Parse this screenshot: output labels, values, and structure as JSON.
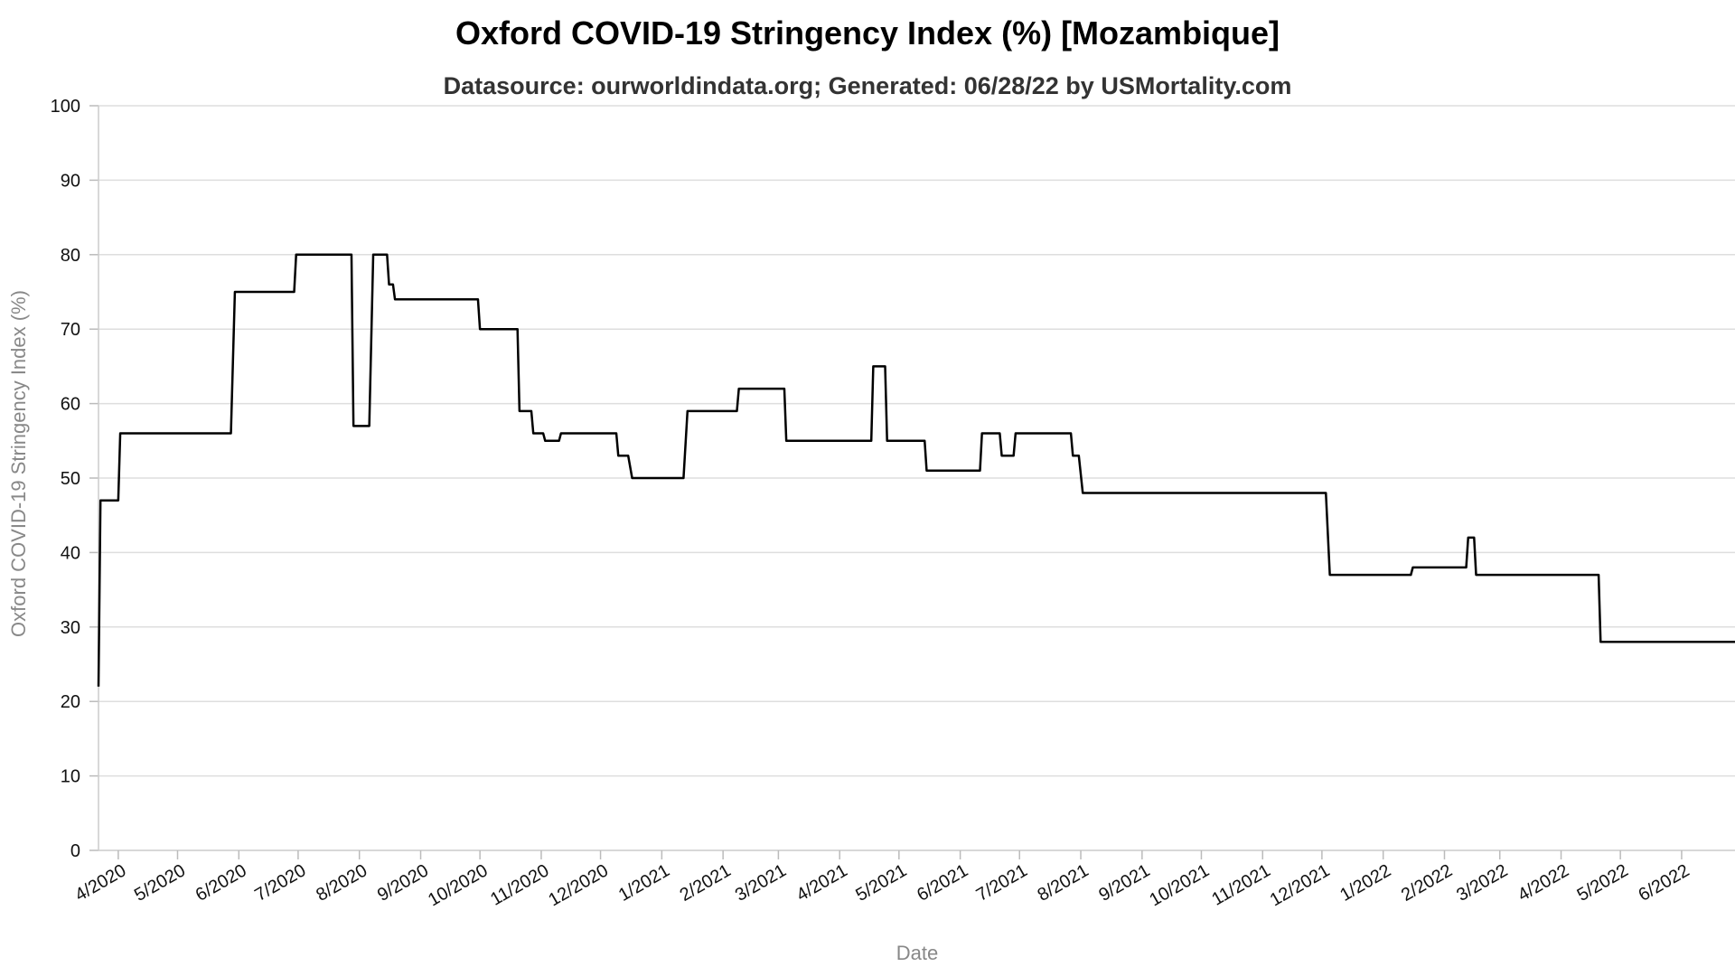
{
  "chart_data": {
    "type": "line",
    "title": "Oxford COVID-19 Stringency Index (%) [Mozambique]",
    "subtitle": "Datasource: ourworldindata.org; Generated: 06/28/22 by USMortality.com",
    "xlabel": "Date",
    "ylabel": "Oxford COVID-19 Stringency Index (%)",
    "ylim": [
      0,
      100
    ],
    "xlim": [
      "2020-03-22",
      "2022-06-28"
    ],
    "yticks": [
      0,
      10,
      20,
      30,
      40,
      50,
      60,
      70,
      80,
      90,
      100
    ],
    "xticks": [
      {
        "date": "2020-04-01",
        "label": "4/2020"
      },
      {
        "date": "2020-05-01",
        "label": "5/2020"
      },
      {
        "date": "2020-06-01",
        "label": "6/2020"
      },
      {
        "date": "2020-07-01",
        "label": "7/2020"
      },
      {
        "date": "2020-08-01",
        "label": "8/2020"
      },
      {
        "date": "2020-09-01",
        "label": "9/2020"
      },
      {
        "date": "2020-10-01",
        "label": "10/2020"
      },
      {
        "date": "2020-11-01",
        "label": "11/2020"
      },
      {
        "date": "2020-12-01",
        "label": "12/2020"
      },
      {
        "date": "2021-01-01",
        "label": "1/2021"
      },
      {
        "date": "2021-02-01",
        "label": "2/2021"
      },
      {
        "date": "2021-03-01",
        "label": "3/2021"
      },
      {
        "date": "2021-04-01",
        "label": "4/2021"
      },
      {
        "date": "2021-05-01",
        "label": "5/2021"
      },
      {
        "date": "2021-06-01",
        "label": "6/2021"
      },
      {
        "date": "2021-07-01",
        "label": "7/2021"
      },
      {
        "date": "2021-08-01",
        "label": "8/2021"
      },
      {
        "date": "2021-09-01",
        "label": "9/2021"
      },
      {
        "date": "2021-10-01",
        "label": "10/2021"
      },
      {
        "date": "2021-11-01",
        "label": "11/2021"
      },
      {
        "date": "2021-12-01",
        "label": "12/2021"
      },
      {
        "date": "2022-01-01",
        "label": "1/2022"
      },
      {
        "date": "2022-02-01",
        "label": "2/2022"
      },
      {
        "date": "2022-03-01",
        "label": "3/2022"
      },
      {
        "date": "2022-04-01",
        "label": "4/2022"
      },
      {
        "date": "2022-05-01",
        "label": "5/2022"
      },
      {
        "date": "2022-06-01",
        "label": "6/2022"
      }
    ],
    "grid": true,
    "line_color": "#000000",
    "series": [
      {
        "points": [
          [
            "2020-03-22",
            22
          ],
          [
            "2020-03-23",
            47
          ],
          [
            "2020-04-01",
            47
          ],
          [
            "2020-04-02",
            56
          ],
          [
            "2020-05-28",
            56
          ],
          [
            "2020-05-30",
            75
          ],
          [
            "2020-06-29",
            75
          ],
          [
            "2020-06-30",
            80
          ],
          [
            "2020-07-28",
            80
          ],
          [
            "2020-07-29",
            57
          ],
          [
            "2020-08-06",
            57
          ],
          [
            "2020-08-08",
            80
          ],
          [
            "2020-08-15",
            80
          ],
          [
            "2020-08-16",
            76
          ],
          [
            "2020-08-18",
            76
          ],
          [
            "2020-08-19",
            74
          ],
          [
            "2020-09-30",
            74
          ],
          [
            "2020-10-01",
            70
          ],
          [
            "2020-10-20",
            70
          ],
          [
            "2020-10-21",
            59
          ],
          [
            "2020-10-27",
            59
          ],
          [
            "2020-10-28",
            56
          ],
          [
            "2020-11-02",
            56
          ],
          [
            "2020-11-03",
            55
          ],
          [
            "2020-11-10",
            55
          ],
          [
            "2020-11-11",
            56
          ],
          [
            "2020-12-09",
            56
          ],
          [
            "2020-12-10",
            53
          ],
          [
            "2020-12-15",
            53
          ],
          [
            "2020-12-17",
            50
          ],
          [
            "2021-01-12",
            50
          ],
          [
            "2021-01-14",
            59
          ],
          [
            "2021-02-08",
            59
          ],
          [
            "2021-02-09",
            62
          ],
          [
            "2021-03-04",
            62
          ],
          [
            "2021-03-05",
            55
          ],
          [
            "2021-04-17",
            55
          ],
          [
            "2021-04-18",
            65
          ],
          [
            "2021-04-24",
            65
          ],
          [
            "2021-04-25",
            55
          ],
          [
            "2021-05-14",
            55
          ],
          [
            "2021-05-15",
            51
          ],
          [
            "2021-06-11",
            51
          ],
          [
            "2021-06-12",
            56
          ],
          [
            "2021-06-21",
            56
          ],
          [
            "2021-06-22",
            53
          ],
          [
            "2021-06-28",
            53
          ],
          [
            "2021-06-29",
            56
          ],
          [
            "2021-07-27",
            56
          ],
          [
            "2021-07-28",
            53
          ],
          [
            "2021-07-31",
            53
          ],
          [
            "2021-08-02",
            48
          ],
          [
            "2021-12-03",
            48
          ],
          [
            "2021-12-05",
            37
          ],
          [
            "2022-01-15",
            37
          ],
          [
            "2022-01-16",
            38
          ],
          [
            "2022-02-12",
            38
          ],
          [
            "2022-02-13",
            42
          ],
          [
            "2022-02-16",
            42
          ],
          [
            "2022-02-17",
            37
          ],
          [
            "2022-04-20",
            37
          ],
          [
            "2022-04-21",
            28
          ],
          [
            "2022-06-28",
            28
          ]
        ]
      }
    ]
  }
}
